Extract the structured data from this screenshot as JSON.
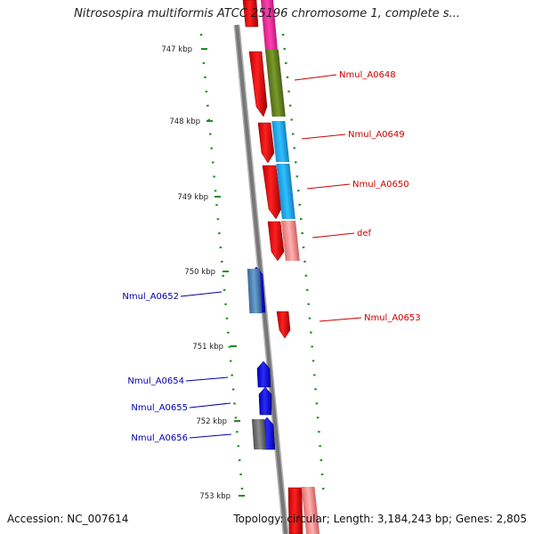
{
  "title": "Nitrosospira multiformis ATCC 25196 chromosome 1, complete s...",
  "footer": {
    "accession": "Accession: NC_007614",
    "stats": "Topology: circular; Length: 3,184,243 bp; Genes: 2,805"
  },
  "ruler": [
    {
      "label": "747 kbp",
      "position_kbp": 747
    },
    {
      "label": "748 kbp",
      "position_kbp": 748
    },
    {
      "label": "749 kbp",
      "position_kbp": 749
    },
    {
      "label": "750 kbp",
      "position_kbp": 750
    },
    {
      "label": "751 kbp",
      "position_kbp": 751
    },
    {
      "label": "752 kbp",
      "position_kbp": 752
    },
    {
      "label": "753 kbp",
      "position_kbp": 753
    }
  ],
  "genes": [
    {
      "label": "Nmul_A0648",
      "strand": "+",
      "color": "#cc0000"
    },
    {
      "label": "Nmul_A0649",
      "strand": "+",
      "color": "#cc0000"
    },
    {
      "label": "Nmul_A0650",
      "strand": "+",
      "color": "#cc0000"
    },
    {
      "label": "def",
      "strand": "+",
      "color": "#cc0000"
    },
    {
      "label": "Nmul_A0652",
      "strand": "-",
      "color": "#0000aa"
    },
    {
      "label": "Nmul_A0653",
      "strand": "+",
      "color": "#cc0000"
    },
    {
      "label": "Nmul_A0654",
      "strand": "-",
      "color": "#0000aa"
    },
    {
      "label": "Nmul_A0655",
      "strand": "-",
      "color": "#0000aa"
    },
    {
      "label": "Nmul_A0656",
      "strand": "-",
      "color": "#0000aa"
    }
  ],
  "colors": {
    "forward_gene": "#ff0000",
    "reverse_gene": "#0000ff",
    "backbone": "#888888",
    "gc_dots": "#228b22",
    "cog_magenta": "#ff33aa",
    "cog_olive": "#6b8e23",
    "cog_cyan": "#22aaee",
    "cog_pink": "#f08080",
    "cog_steel": "#4682b4",
    "cog_gray": "#707070"
  }
}
